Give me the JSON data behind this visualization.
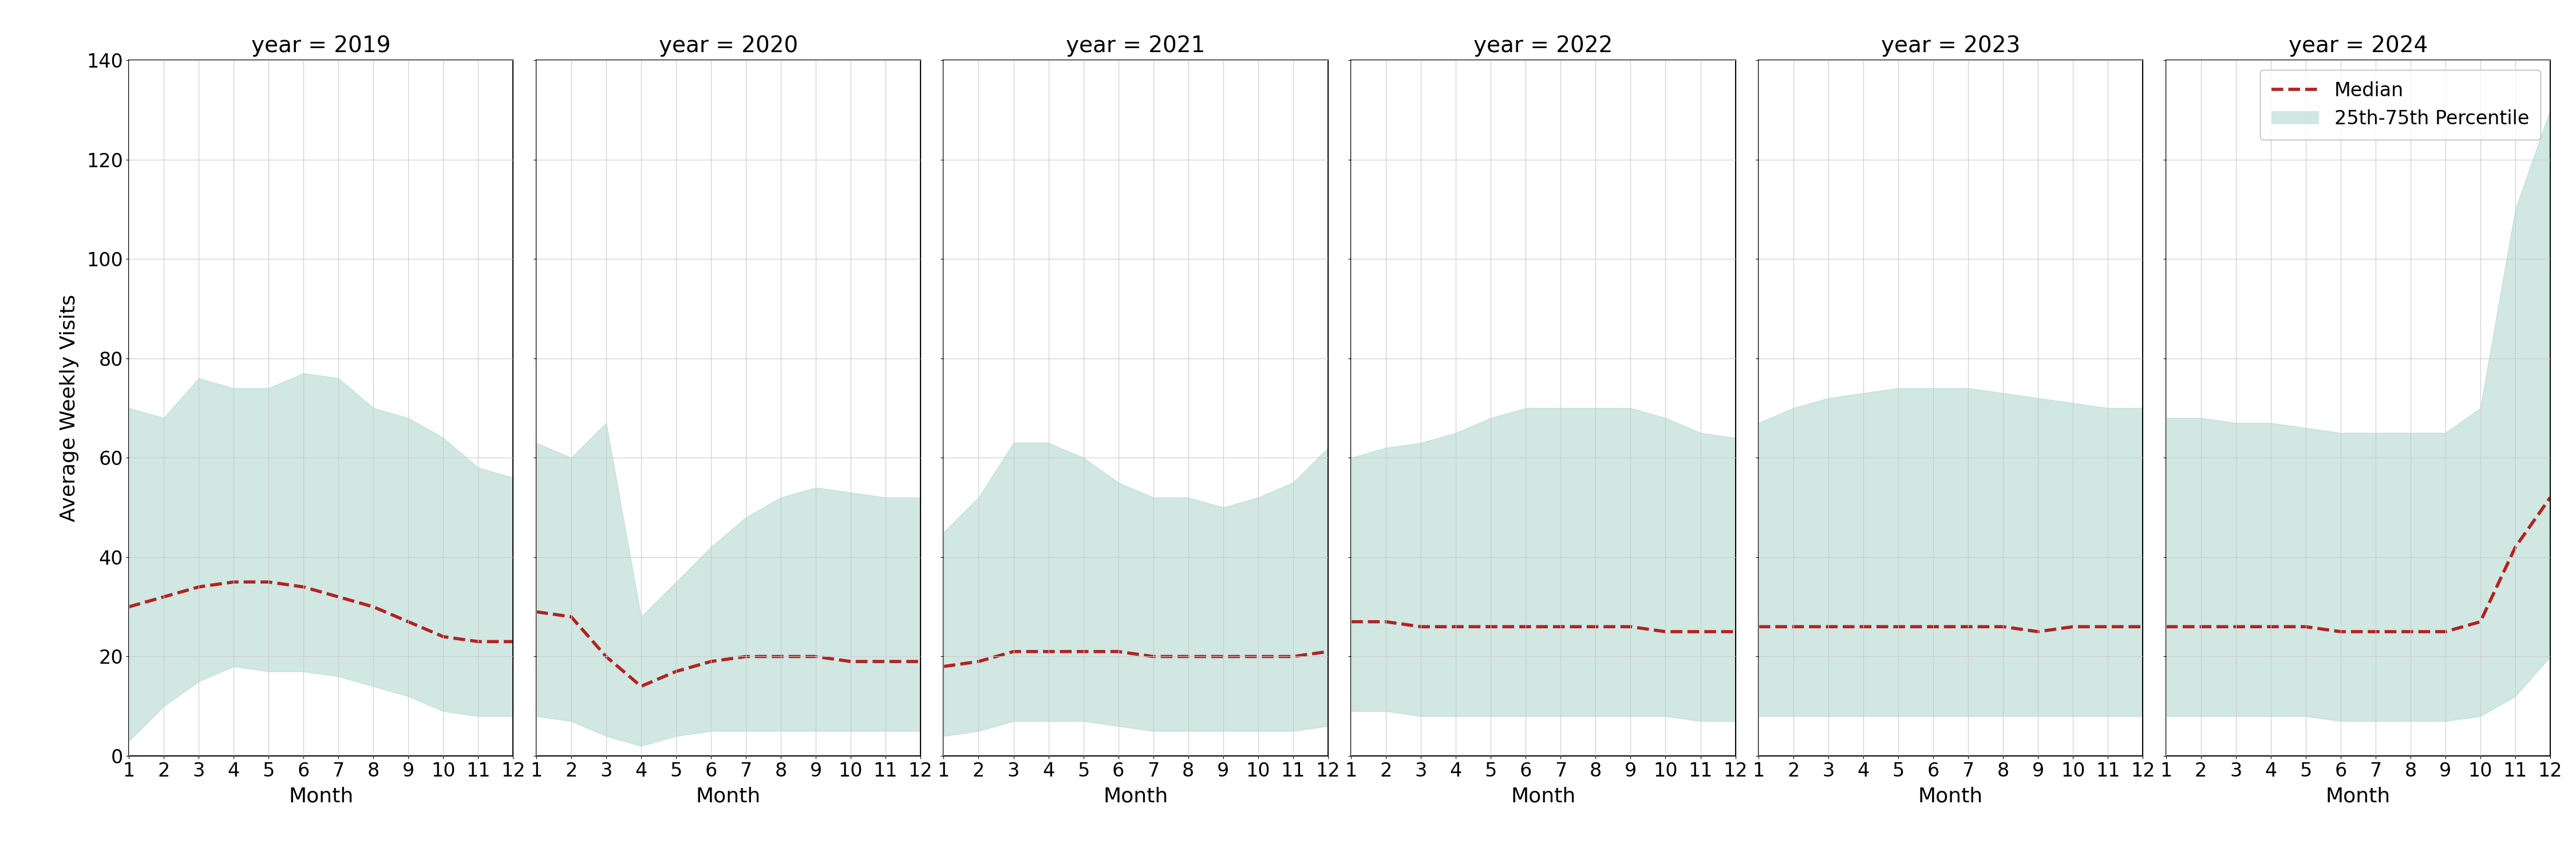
{
  "years": [
    2019,
    2020,
    2021,
    2022,
    2023,
    2024
  ],
  "months": [
    1,
    2,
    3,
    4,
    5,
    6,
    7,
    8,
    9,
    10,
    11,
    12
  ],
  "ylabel": "Average Weekly Visits",
  "xlabel": "Month",
  "ylim": [
    0,
    140
  ],
  "yticks": [
    0,
    20,
    40,
    60,
    80,
    100,
    120,
    140
  ],
  "fill_color": "#b2d8d0",
  "fill_alpha": 0.6,
  "line_color": "#b22222",
  "line_style": "--",
  "line_width": 4.0,
  "median": {
    "2019": [
      30,
      32,
      34,
      35,
      35,
      34,
      32,
      30,
      27,
      24,
      23,
      23
    ],
    "2020": [
      29,
      28,
      20,
      14,
      17,
      19,
      20,
      20,
      20,
      19,
      19,
      19
    ],
    "2021": [
      18,
      19,
      21,
      21,
      21,
      21,
      20,
      20,
      20,
      20,
      20,
      21
    ],
    "2022": [
      27,
      27,
      26,
      26,
      26,
      26,
      26,
      26,
      26,
      25,
      25,
      25
    ],
    "2023": [
      26,
      26,
      26,
      26,
      26,
      26,
      26,
      26,
      25,
      26,
      26,
      26
    ],
    "2024": [
      26,
      26,
      26,
      26,
      26,
      25,
      25,
      25,
      25,
      27,
      42,
      52
    ]
  },
  "p25": {
    "2019": [
      3,
      10,
      15,
      18,
      17,
      17,
      16,
      14,
      12,
      9,
      8,
      8
    ],
    "2020": [
      8,
      7,
      4,
      2,
      4,
      5,
      5,
      5,
      5,
      5,
      5,
      5
    ],
    "2021": [
      4,
      5,
      7,
      7,
      7,
      6,
      5,
      5,
      5,
      5,
      5,
      6
    ],
    "2022": [
      9,
      9,
      8,
      8,
      8,
      8,
      8,
      8,
      8,
      8,
      7,
      7
    ],
    "2023": [
      8,
      8,
      8,
      8,
      8,
      8,
      8,
      8,
      8,
      8,
      8,
      8
    ],
    "2024": [
      8,
      8,
      8,
      8,
      8,
      7,
      7,
      7,
      7,
      8,
      12,
      20
    ]
  },
  "p75": {
    "2019": [
      70,
      68,
      76,
      74,
      74,
      77,
      76,
      70,
      68,
      64,
      58,
      56
    ],
    "2020": [
      63,
      60,
      67,
      28,
      35,
      42,
      48,
      52,
      54,
      53,
      52,
      52
    ],
    "2021": [
      45,
      52,
      63,
      63,
      60,
      55,
      52,
      52,
      50,
      52,
      55,
      62
    ],
    "2022": [
      60,
      62,
      63,
      65,
      68,
      70,
      70,
      70,
      70,
      68,
      65,
      64
    ],
    "2023": [
      67,
      70,
      72,
      73,
      74,
      74,
      74,
      73,
      72,
      71,
      70,
      70
    ],
    "2024": [
      68,
      68,
      67,
      67,
      66,
      65,
      65,
      65,
      65,
      70,
      110,
      130
    ]
  },
  "legend_median_label": "Median",
  "legend_fill_label": "25th-75th Percentile",
  "title_fontsize": 28,
  "label_fontsize": 26,
  "tick_fontsize": 24,
  "legend_fontsize": 24
}
